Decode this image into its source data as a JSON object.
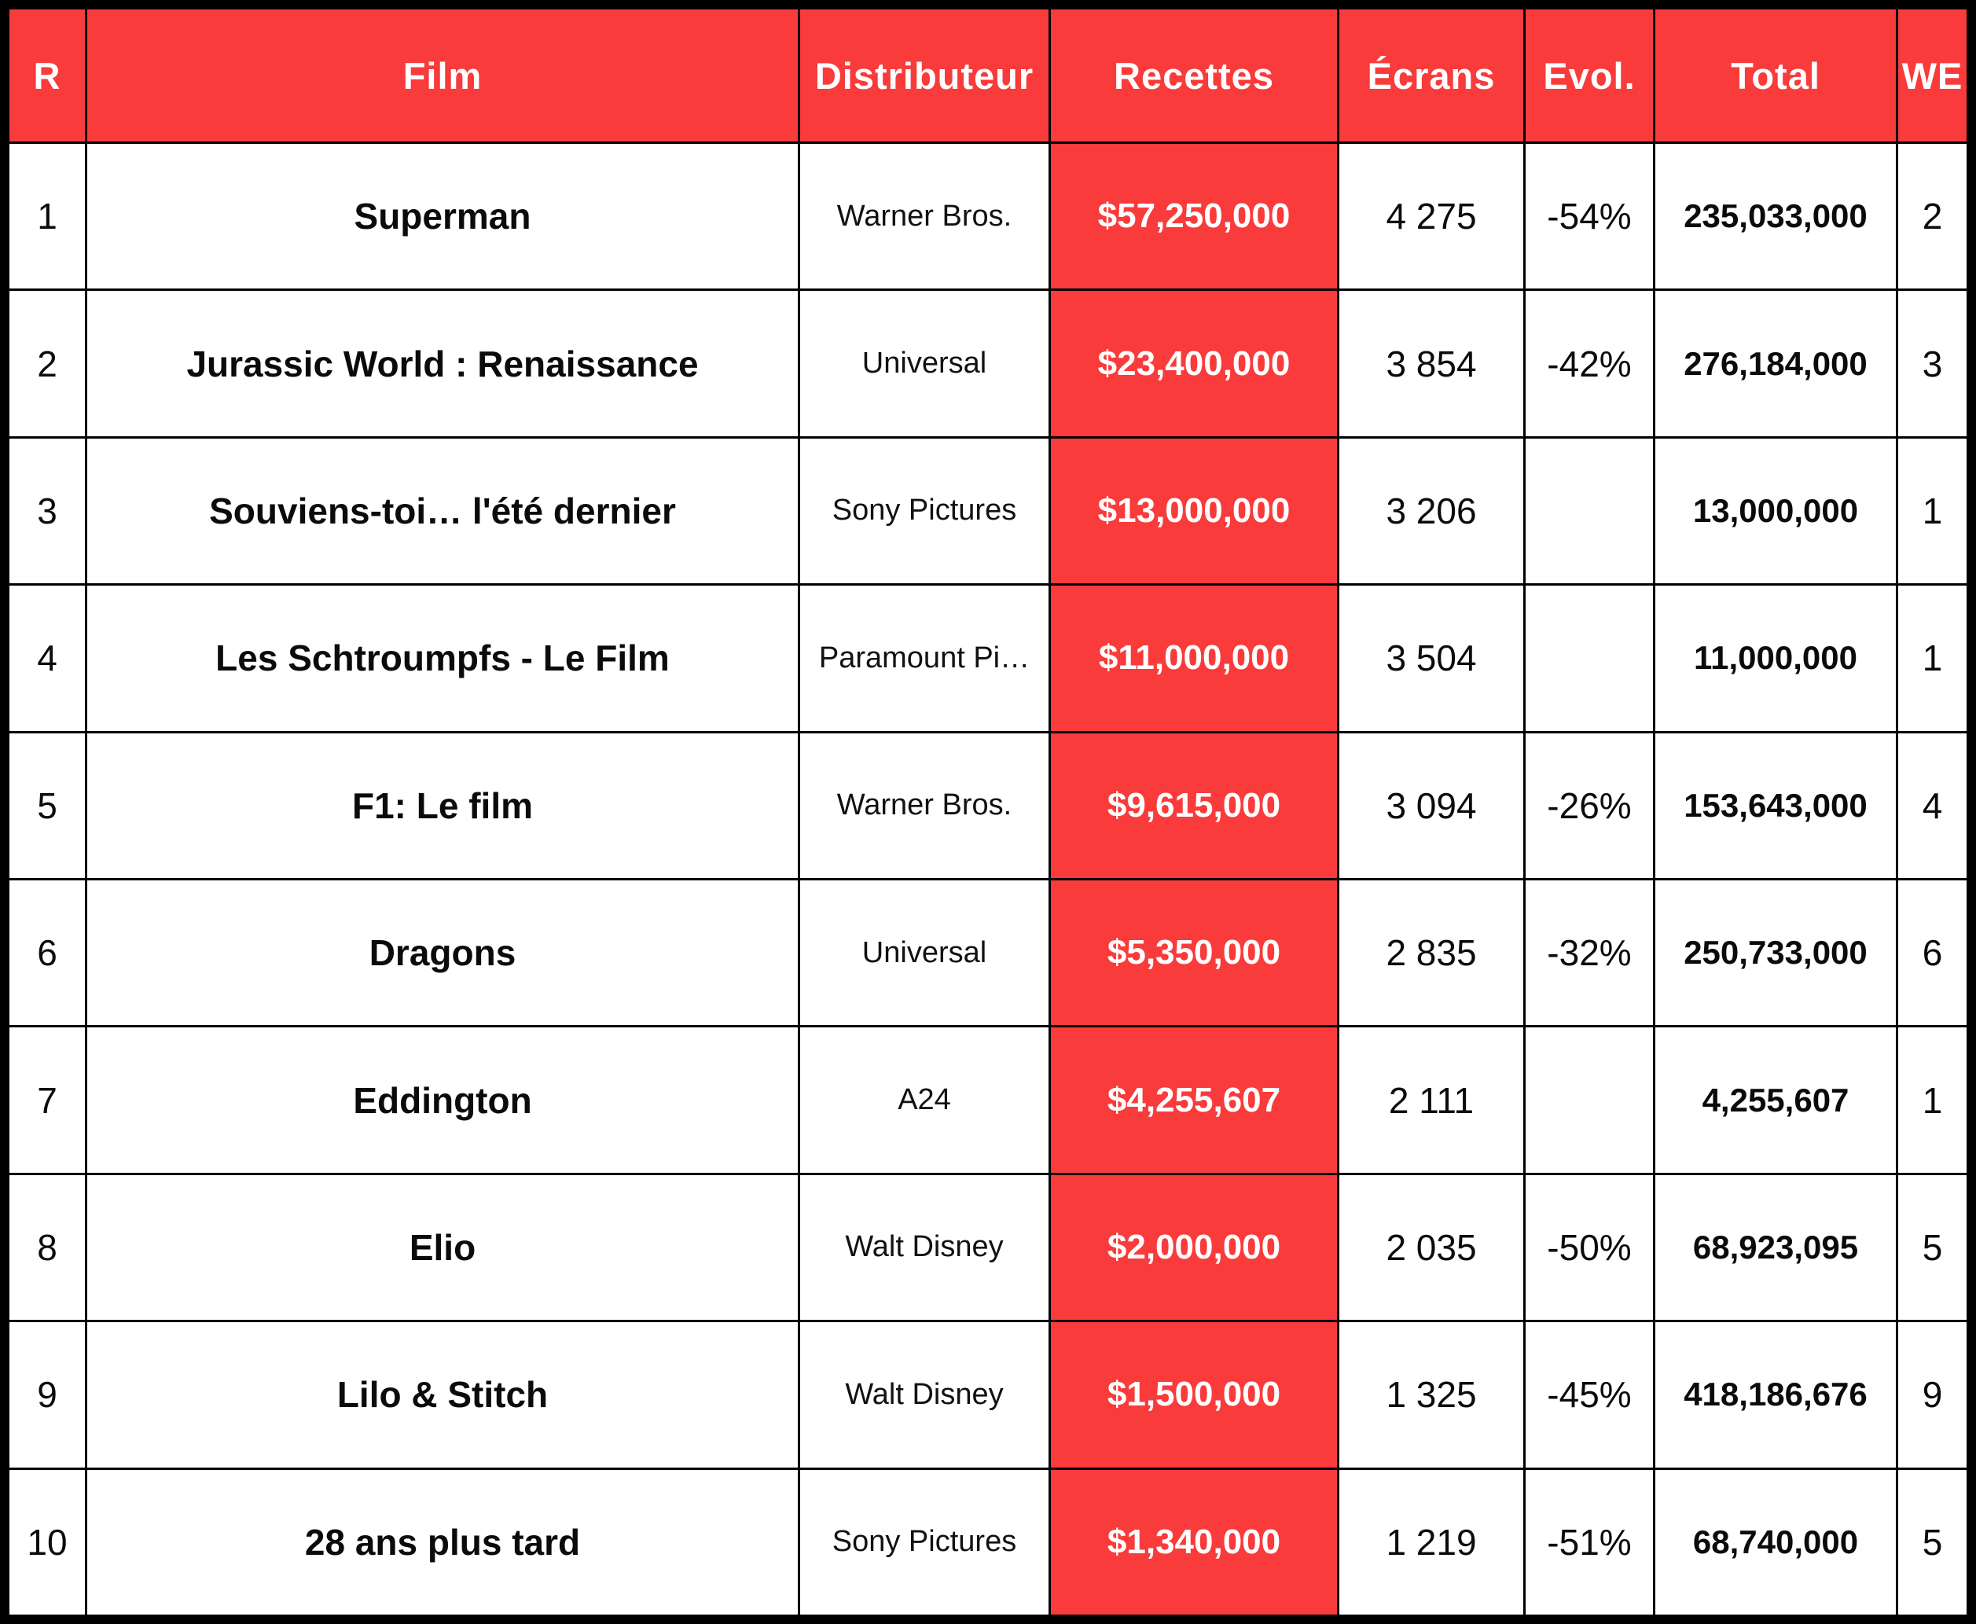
{
  "colors": {
    "accent_red": "#f93b3b",
    "border_black": "#000000",
    "cell_white": "#ffffff"
  },
  "table": {
    "headers": {
      "rank": "R",
      "film": "Film",
      "distributor": "Distributeur",
      "revenue": "Recettes",
      "screens": "Écrans",
      "evolution": "Evol.",
      "total": "Total",
      "weekend": "WE"
    },
    "rows": [
      {
        "rank": "1",
        "film": "Superman",
        "distributor": "Warner Bros.",
        "revenue": "$57,250,000",
        "screens": "4 275",
        "evol": "-54%",
        "total": "235,033,000",
        "we": "2"
      },
      {
        "rank": "2",
        "film": "Jurassic World : Renaissance",
        "distributor": "Universal",
        "revenue": "$23,400,000",
        "screens": "3 854",
        "evol": "-42%",
        "total": "276,184,000",
        "we": "3"
      },
      {
        "rank": "3",
        "film": "Souviens-toi… l'été dernier",
        "distributor": "Sony Pictures",
        "revenue": "$13,000,000",
        "screens": "3 206",
        "evol": "",
        "total": "13,000,000",
        "we": "1"
      },
      {
        "rank": "4",
        "film": "Les Schtroumpfs - Le Film",
        "distributor": "Paramount Pi…",
        "revenue": "$11,000,000",
        "screens": "3 504",
        "evol": "",
        "total": "11,000,000",
        "we": "1"
      },
      {
        "rank": "5",
        "film": "F1: Le film",
        "distributor": "Warner Bros.",
        "revenue": "$9,615,000",
        "screens": "3 094",
        "evol": "-26%",
        "total": "153,643,000",
        "we": "4"
      },
      {
        "rank": "6",
        "film": "Dragons",
        "distributor": "Universal",
        "revenue": "$5,350,000",
        "screens": "2 835",
        "evol": "-32%",
        "total": "250,733,000",
        "we": "6"
      },
      {
        "rank": "7",
        "film": "Eddington",
        "distributor": "A24",
        "revenue": "$4,255,607",
        "screens": "2 111",
        "evol": "",
        "total": "4,255,607",
        "we": "1"
      },
      {
        "rank": "8",
        "film": "Elio",
        "distributor": "Walt Disney",
        "revenue": "$2,000,000",
        "screens": "2 035",
        "evol": "-50%",
        "total": "68,923,095",
        "we": "5"
      },
      {
        "rank": "9",
        "film": "Lilo & Stitch",
        "distributor": "Walt Disney",
        "revenue": "$1,500,000",
        "screens": "1 325",
        "evol": "-45%",
        "total": "418,186,676",
        "we": "9"
      },
      {
        "rank": "10",
        "film": "28 ans plus tard",
        "distributor": "Sony Pictures",
        "revenue": "$1,340,000",
        "screens": "1 219",
        "evol": "-51%",
        "total": "68,740,000",
        "we": "5"
      }
    ]
  },
  "chart_data": {
    "type": "table",
    "title": "",
    "columns": [
      "R",
      "Film",
      "Distributeur",
      "Recettes",
      "Écrans",
      "Evol.",
      "Total",
      "WE"
    ],
    "rows": [
      [
        "1",
        "Superman",
        "Warner Bros.",
        "$57,250,000",
        "4 275",
        "-54%",
        "235,033,000",
        "2"
      ],
      [
        "2",
        "Jurassic World : Renaissance",
        "Universal",
        "$23,400,000",
        "3 854",
        "-42%",
        "276,184,000",
        "3"
      ],
      [
        "3",
        "Souviens-toi… l'été dernier",
        "Sony Pictures",
        "$13,000,000",
        "3 206",
        "",
        "13,000,000",
        "1"
      ],
      [
        "4",
        "Les Schtroumpfs - Le Film",
        "Paramount Pi…",
        "$11,000,000",
        "3 504",
        "",
        "11,000,000",
        "1"
      ],
      [
        "5",
        "F1: Le film",
        "Warner Bros.",
        "$9,615,000",
        "3 094",
        "-26%",
        "153,643,000",
        "4"
      ],
      [
        "6",
        "Dragons",
        "Universal",
        "$5,350,000",
        "2 835",
        "-32%",
        "250,733,000",
        "6"
      ],
      [
        "7",
        "Eddington",
        "A24",
        "$4,255,607",
        "2 111",
        "",
        "4,255,607",
        "1"
      ],
      [
        "8",
        "Elio",
        "Walt Disney",
        "$2,000,000",
        "2 035",
        "-50%",
        "68,923,095",
        "5"
      ],
      [
        "9",
        "Lilo & Stitch",
        "Walt Disney",
        "$1,500,000",
        "1 325",
        "-45%",
        "418,186,676",
        "9"
      ],
      [
        "10",
        "28 ans plus tard",
        "Sony Pictures",
        "$1,340,000",
        "1 219",
        "-51%",
        "68,740,000",
        "5"
      ]
    ]
  }
}
